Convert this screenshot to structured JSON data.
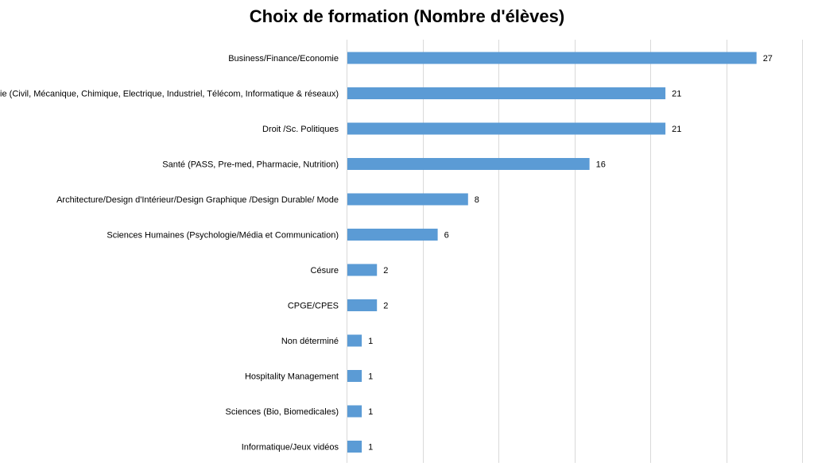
{
  "chart_data": {
    "type": "bar",
    "orientation": "horizontal",
    "title": "Choix de formation (Nombre d'élèves)",
    "xlabel": "",
    "ylabel": "",
    "xlim": [
      0,
      30
    ],
    "grid": true,
    "legend": "none",
    "bar_color": "#5B9BD5",
    "categories": [
      "Business/Finance/Economie",
      "Génie (Civil, Mécanique, Chimique, Electrique, Industriel, Télécom, Informatique & réseaux)",
      "Droit /Sc. Politiques",
      "Santé (PASS, Pre-med, Pharmacie, Nutrition)",
      "Architecture/Design d'Intérieur/Design Graphique /Design Durable/ Mode",
      "Sciences Humaines (Psychologie/Média et Communication)",
      "Césure",
      "CPGE/CPES",
      "Non déterminé",
      "Hospitality Management",
      "Sciences (Bio, Biomedicales)",
      "Informatique/Jeux vidéos"
    ],
    "values": [
      27,
      21,
      21,
      16,
      8,
      6,
      2,
      2,
      1,
      1,
      1,
      1
    ]
  }
}
